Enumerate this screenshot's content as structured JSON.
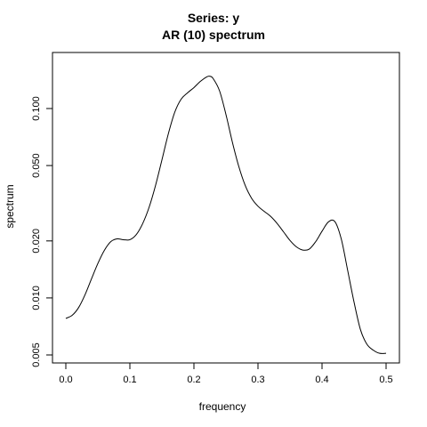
{
  "chart_data": {
    "type": "line",
    "title": "Series: y",
    "subtitle": "AR (10) spectrum",
    "xlabel": "frequency",
    "ylabel": "spectrum",
    "y_scale": "log",
    "xlim": [
      0.0,
      0.5
    ],
    "ylim": [
      0.005,
      0.14
    ],
    "grid": false,
    "x_ticks": [
      "0.0",
      "0.1",
      "0.2",
      "0.3",
      "0.4",
      "0.5"
    ],
    "y_ticks": [
      "0.005",
      "0.010",
      "0.020",
      "0.050",
      "0.100"
    ],
    "series": [
      {
        "x": [
          0.0,
          0.01,
          0.02,
          0.03,
          0.04,
          0.05,
          0.06,
          0.07,
          0.08,
          0.09,
          0.1,
          0.11,
          0.12,
          0.13,
          0.14,
          0.15,
          0.16,
          0.17,
          0.18,
          0.19,
          0.2,
          0.21,
          0.22,
          0.225,
          0.23,
          0.24,
          0.25,
          0.26,
          0.27,
          0.28,
          0.29,
          0.3,
          0.31,
          0.32,
          0.33,
          0.34,
          0.35,
          0.36,
          0.37,
          0.38,
          0.39,
          0.4,
          0.41,
          0.42,
          0.43,
          0.44,
          0.45,
          0.46,
          0.47,
          0.48,
          0.49,
          0.5
        ],
        "y": [
          0.0078,
          0.0081,
          0.0089,
          0.0104,
          0.0126,
          0.0152,
          0.0178,
          0.0198,
          0.0205,
          0.0203,
          0.0203,
          0.0216,
          0.0247,
          0.0301,
          0.0392,
          0.0535,
          0.0735,
          0.0955,
          0.112,
          0.121,
          0.129,
          0.139,
          0.147,
          0.148,
          0.144,
          0.124,
          0.093,
          0.0665,
          0.0495,
          0.0393,
          0.0336,
          0.0305,
          0.0286,
          0.0269,
          0.0247,
          0.0223,
          0.0201,
          0.0186,
          0.0179,
          0.0181,
          0.0198,
          0.0225,
          0.0252,
          0.0253,
          0.0205,
          0.014,
          0.0095,
          0.0068,
          0.0057,
          0.0053,
          0.0051,
          0.0051
        ]
      }
    ]
  }
}
